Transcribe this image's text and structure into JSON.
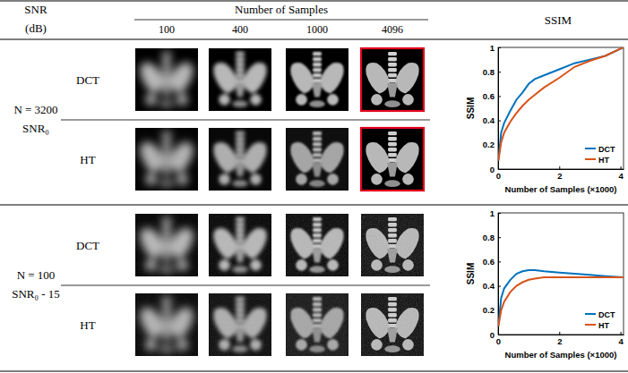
{
  "header": {
    "snr": "SNR",
    "snr_unit": "(dB)",
    "samples_title": "Number of Samples",
    "samples": [
      100,
      400,
      1000,
      4096
    ],
    "ssim": "SSIM"
  },
  "rows": [
    {
      "n_label": "N = 3200",
      "snr_label": "SNR₀",
      "methods": [
        "DCT",
        "HT"
      ]
    },
    {
      "n_label": "N = 100",
      "snr_label": "SNR₀ - 15",
      "methods": [
        "DCT",
        "HT"
      ]
    }
  ],
  "chart_data": [
    {
      "type": "line",
      "x_label": "Number of Samples (×1000)",
      "y_label": "SSIM",
      "x": [
        0.01,
        0.1,
        0.2,
        0.4,
        0.6,
        0.8,
        1.0,
        1.2,
        1.5,
        2.0,
        2.5,
        3.0,
        3.5,
        4.096
      ],
      "series": [
        {
          "name": "DCT",
          "color": "#0072bd",
          "values": [
            0.07,
            0.3,
            0.38,
            0.48,
            0.57,
            0.63,
            0.7,
            0.74,
            0.77,
            0.82,
            0.87,
            0.9,
            0.93,
            1.0
          ]
        },
        {
          "name": "HT",
          "color": "#d95319",
          "values": [
            0.07,
            0.22,
            0.3,
            0.39,
            0.46,
            0.52,
            0.57,
            0.61,
            0.67,
            0.75,
            0.84,
            0.89,
            0.93,
            1.0
          ]
        }
      ],
      "xlim": [
        0,
        4.1
      ],
      "ylim": [
        0,
        1
      ],
      "xticks": [
        0,
        2,
        4
      ],
      "yticks": [
        0,
        0.2,
        0.4,
        0.6,
        0.8,
        1
      ],
      "legend": "lower right"
    },
    {
      "type": "line",
      "x_label": "Number of Samples (×1000)",
      "y_label": "SSIM",
      "x": [
        0.01,
        0.1,
        0.2,
        0.4,
        0.6,
        0.8,
        1.0,
        1.2,
        1.5,
        2.0,
        2.5,
        3.0,
        3.5,
        4.096
      ],
      "series": [
        {
          "name": "DCT",
          "color": "#0072bd",
          "values": [
            0.07,
            0.3,
            0.38,
            0.45,
            0.5,
            0.52,
            0.53,
            0.53,
            0.52,
            0.51,
            0.5,
            0.49,
            0.48,
            0.47
          ]
        },
        {
          "name": "HT",
          "color": "#d95319",
          "values": [
            0.07,
            0.2,
            0.27,
            0.35,
            0.4,
            0.43,
            0.45,
            0.46,
            0.47,
            0.47,
            0.47,
            0.47,
            0.47,
            0.47
          ]
        }
      ],
      "xlim": [
        0,
        4.1
      ],
      "ylim": [
        0,
        1
      ],
      "xticks": [
        0,
        2,
        4
      ],
      "yticks": [
        0,
        0.2,
        0.4,
        0.6,
        0.8,
        1
      ],
      "legend": "lower right"
    }
  ]
}
